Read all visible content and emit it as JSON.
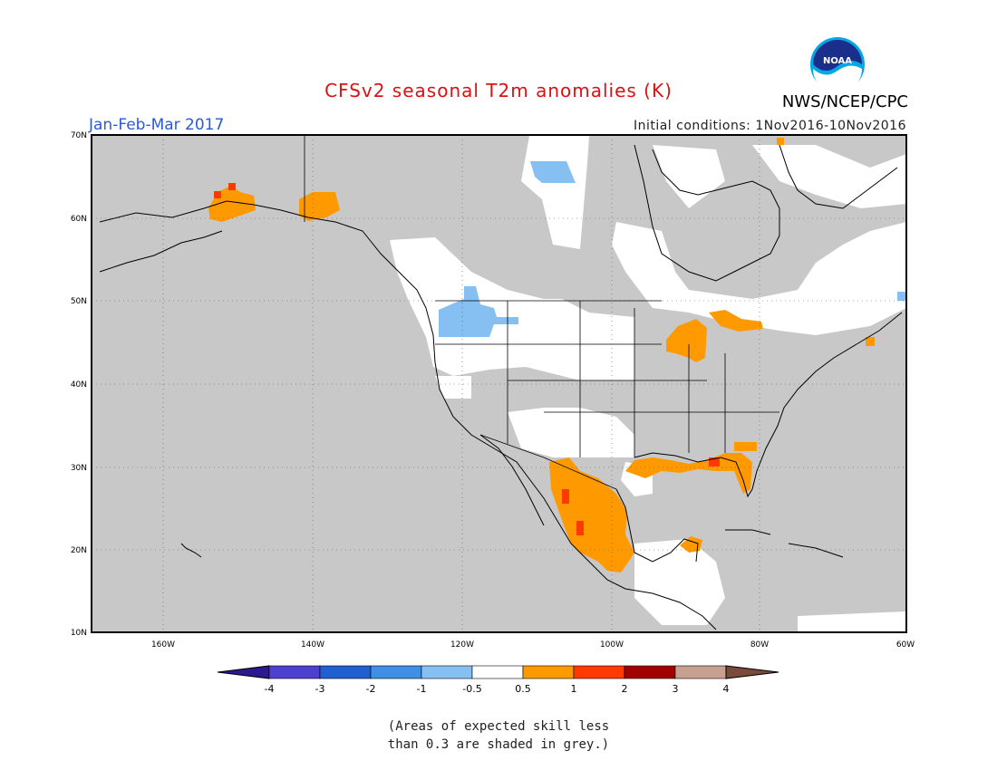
{
  "title": "CFSv2 seasonal T2m anomalies (K)",
  "agency": "NWS/NCEP/CPC",
  "logo_text": "NOAA",
  "period": "Jan-Feb-Mar 2017",
  "initial_conditions": "Initial conditions: 1Nov2016-10Nov2016",
  "map": {
    "lon_labels": [
      "160W",
      "140W",
      "120W",
      "100W",
      "80W",
      "60W"
    ],
    "lat_labels": [
      "70N",
      "60N",
      "50N",
      "40N",
      "30N",
      "20N",
      "10N"
    ],
    "land_color": "#c8c8c8"
  },
  "colorbar": {
    "labels": [
      "-4",
      "-3",
      "-2",
      "-1",
      "-0.5",
      "0.5",
      "1",
      "2",
      "3",
      "4"
    ],
    "colors": [
      "#2b1a8f",
      "#4d3fcf",
      "#1f5fd2",
      "#3f8fe6",
      "#86bff2",
      "#ffffff",
      "#ff9900",
      "#ff3a00",
      "#a00000",
      "#c8a090",
      "#7a4a3a"
    ]
  },
  "skill_note": [
    "(Areas of expected skill less",
    "than 0.3 are shaded in grey.)"
  ]
}
